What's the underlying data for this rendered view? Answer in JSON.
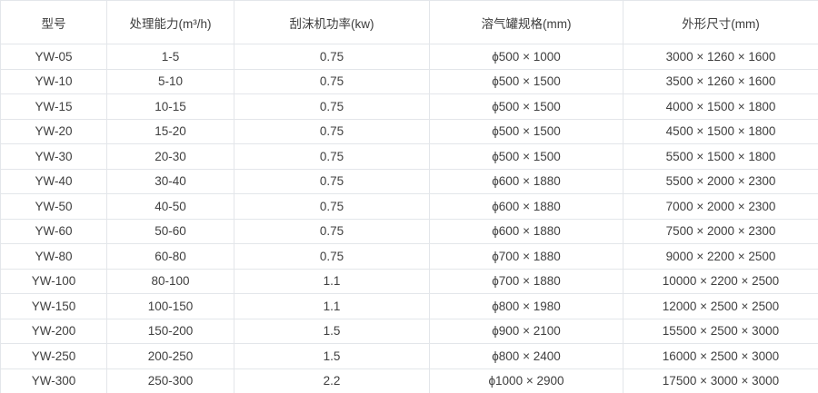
{
  "table": {
    "headers": [
      "型号",
      "处理能力(m³/h)",
      "刮沫机功率(kw)",
      "溶气罐规格(mm)",
      "外形尺寸(mm)"
    ],
    "rows": [
      [
        "YW-05",
        "1-5",
        "0.75",
        "ϕ500 × 1000",
        "3000 × 1260 × 1600"
      ],
      [
        "YW-10",
        "5-10",
        "0.75",
        "ϕ500 × 1500",
        "3500 × 1260 × 1600"
      ],
      [
        "YW-15",
        "10-15",
        "0.75",
        "ϕ500 × 1500",
        "4000 × 1500 × 1800"
      ],
      [
        "YW-20",
        "15-20",
        "0.75",
        "ϕ500 × 1500",
        "4500 × 1500 × 1800"
      ],
      [
        "YW-30",
        "20-30",
        "0.75",
        "ϕ500 × 1500",
        "5500 × 1500 × 1800"
      ],
      [
        "YW-40",
        "30-40",
        "0.75",
        "ϕ600 × 1880",
        "5500 × 2000 × 2300"
      ],
      [
        "YW-50",
        "40-50",
        "0.75",
        "ϕ600 × 1880",
        "7000 × 2000 × 2300"
      ],
      [
        "YW-60",
        "50-60",
        "0.75",
        "ϕ600 × 1880",
        "7500 × 2000 × 2300"
      ],
      [
        "YW-80",
        "60-80",
        "0.75",
        "ϕ700 × 1880",
        "9000 × 2200 × 2500"
      ],
      [
        "YW-100",
        "80-100",
        "1.1",
        "ϕ700 × 1880",
        "10000 × 2200 × 2500"
      ],
      [
        "YW-150",
        "100-150",
        "1.1",
        "ϕ800 × 1980",
        "12000 × 2500 × 2500"
      ],
      [
        "YW-200",
        "150-200",
        "1.5",
        "ϕ900 × 2100",
        "15500 × 2500 × 3000"
      ],
      [
        "YW-250",
        "200-250",
        "1.5",
        "ϕ800 × 2400",
        "16000 × 2500 × 3000"
      ],
      [
        "YW-300",
        "250-300",
        "2.2",
        "ϕ1000 × 2900",
        "17500 × 3000 × 3000"
      ]
    ]
  },
  "colors": {
    "border": "#e3e6ea",
    "text": "#404040",
    "background": "#ffffff"
  }
}
